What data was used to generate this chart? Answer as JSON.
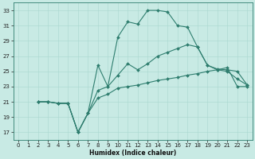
{
  "xlabel": "Humidex (Indice chaleur)",
  "xlim": [
    -0.5,
    23.5
  ],
  "ylim": [
    16.0,
    34.0
  ],
  "yticks": [
    17,
    19,
    21,
    23,
    25,
    27,
    29,
    31,
    33
  ],
  "xticks": [
    0,
    1,
    2,
    3,
    4,
    5,
    6,
    7,
    8,
    9,
    10,
    11,
    12,
    13,
    14,
    15,
    16,
    17,
    18,
    19,
    20,
    21,
    22,
    23
  ],
  "bg_color": "#c8eae4",
  "line_color": "#2e7d6e",
  "line1_x": [
    2,
    3,
    4,
    5,
    6,
    7,
    8,
    9,
    10,
    11,
    12,
    13,
    14,
    15,
    16,
    17,
    18,
    19,
    20,
    21,
    22,
    23
  ],
  "line1_y": [
    21.0,
    21.0,
    20.8,
    20.8,
    17.0,
    19.5,
    25.8,
    23.0,
    29.5,
    31.5,
    31.2,
    33.0,
    33.0,
    32.8,
    31.0,
    30.8,
    28.2,
    25.8,
    25.2,
    25.0,
    24.0,
    23.2
  ],
  "line2_x": [
    2,
    3,
    4,
    5,
    6,
    7,
    8,
    9,
    10,
    11,
    12,
    13,
    14,
    15,
    16,
    17,
    18,
    19,
    20,
    21,
    22,
    23
  ],
  "line2_y": [
    21.0,
    21.0,
    20.8,
    20.8,
    17.0,
    19.5,
    22.5,
    23.0,
    24.5,
    26.0,
    25.2,
    26.0,
    27.0,
    27.5,
    28.0,
    28.5,
    28.2,
    25.8,
    25.3,
    25.2,
    25.0,
    23.2
  ],
  "line3_x": [
    2,
    3,
    4,
    5,
    6,
    7,
    8,
    9,
    10,
    11,
    12,
    13,
    14,
    15,
    16,
    17,
    18,
    19,
    20,
    21,
    22,
    23
  ],
  "line3_y": [
    21.0,
    21.0,
    20.8,
    20.8,
    17.0,
    19.5,
    21.5,
    22.0,
    22.8,
    23.0,
    23.2,
    23.5,
    23.8,
    24.0,
    24.2,
    24.5,
    24.7,
    25.0,
    25.2,
    25.5,
    23.0,
    23.0
  ],
  "tick_labelsize": 5,
  "xlabel_fontsize": 5.5,
  "marker_size": 2.0,
  "linewidth": 0.8
}
